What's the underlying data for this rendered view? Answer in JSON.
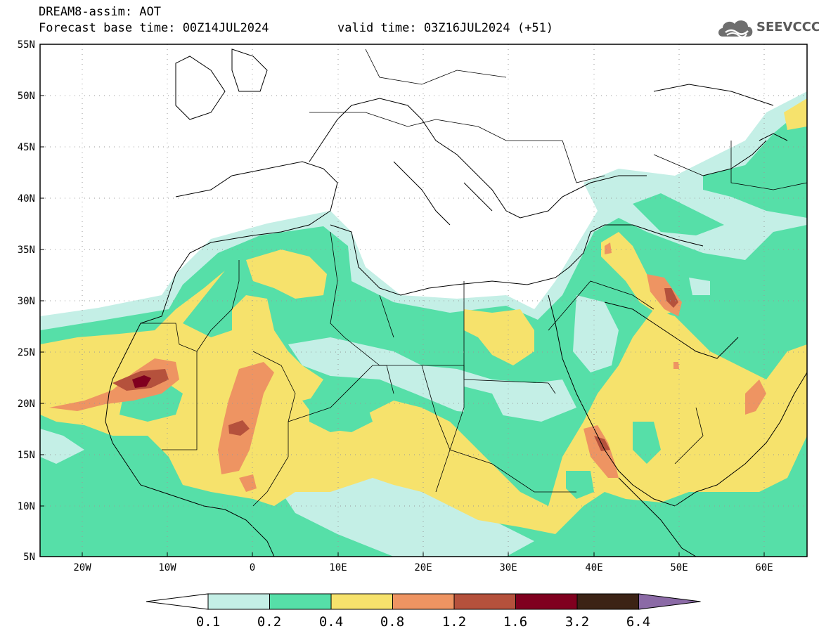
{
  "header": {
    "title_line1": "DREAM8-assim: AOT",
    "title_line2": "Forecast base time: 00Z14JUL2024",
    "valid_time": "valid time: 03Z16JUL2024 (+51)"
  },
  "logo": {
    "text": "SEEVCCC",
    "icon": "cloud-icon"
  },
  "map": {
    "lat_labels": [
      "55N",
      "50N",
      "45N",
      "40N",
      "35N",
      "30N",
      "25N",
      "20N",
      "15N",
      "10N",
      "5N"
    ],
    "lon_labels": [
      "20W",
      "10W",
      "0",
      "10E",
      "20E",
      "30E",
      "40E",
      "50E",
      "60E"
    ]
  },
  "colorbar": {
    "labels": [
      "0.1",
      "0.2",
      "0.4",
      "0.8",
      "1.2",
      "1.6",
      "3.2",
      "6.4"
    ],
    "colors": [
      "#ffffff",
      "#c4efe6",
      "#56dfa8",
      "#f6e26c",
      "#ee9462",
      "#b5513c",
      "#80001f",
      "#3c2315",
      "#8b6aa6"
    ]
  }
}
